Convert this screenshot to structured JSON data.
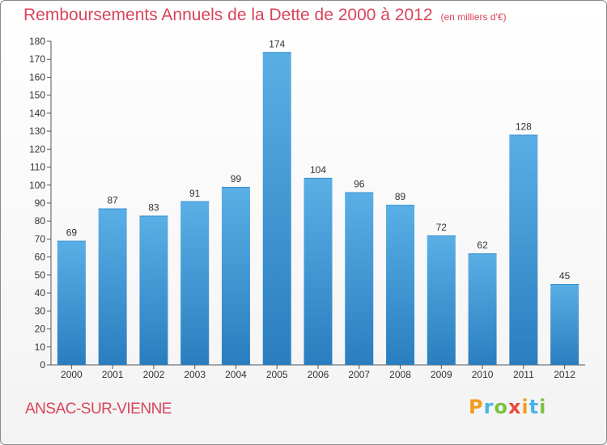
{
  "title": "Remboursements Annuels de la Dette de 2000 à 2012",
  "subtitle_unit": "(en milliers d'€)",
  "city": "ANSAC-SUR-VIENNE",
  "logo": {
    "text": "Proxiti",
    "letter_colors": [
      "#f39c1f",
      "#4ab3e6",
      "#7cc242",
      "#e74c3c",
      "#f39c1f",
      "#4ab3e6",
      "#7cc242"
    ]
  },
  "colors": {
    "title": "#d9445a",
    "bar_light": "#5aafe6",
    "bar_dark": "#2a7ebf"
  },
  "chart_data": {
    "type": "bar",
    "categories": [
      "2000",
      "2001",
      "2002",
      "2003",
      "2004",
      "2005",
      "2006",
      "2007",
      "2008",
      "2009",
      "2010",
      "2011",
      "2012"
    ],
    "values": [
      69,
      87,
      83,
      91,
      99,
      174,
      104,
      96,
      89,
      72,
      62,
      128,
      45
    ],
    "ylim": [
      0,
      180
    ],
    "yticks": [
      0,
      10,
      20,
      30,
      40,
      50,
      60,
      70,
      80,
      90,
      100,
      110,
      120,
      130,
      140,
      150,
      160,
      170,
      180
    ],
    "grid": false,
    "data_labels": true
  }
}
